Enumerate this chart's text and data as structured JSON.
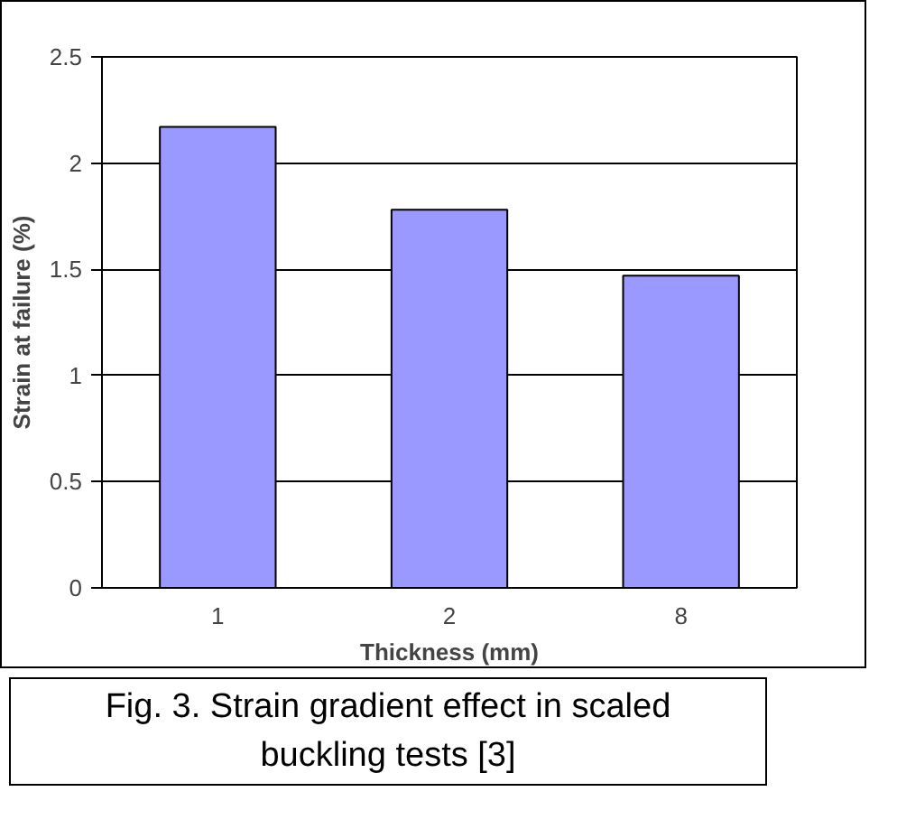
{
  "chart_data": {
    "type": "bar",
    "categories": [
      "1",
      "2",
      "8"
    ],
    "values": [
      2.17,
      1.78,
      1.47
    ],
    "color": "#9999ff",
    "xlabel": "Thickness (mm)",
    "ylabel": "Strain at failure (%)",
    "ylim": [
      0,
      2.5
    ],
    "yticks": [
      0,
      0.5,
      1,
      1.5,
      2,
      2.5
    ],
    "grid": "y",
    "annotations": [
      "Fig. 3. Strain gradient effect in scaled buckling tests [3]"
    ]
  }
}
